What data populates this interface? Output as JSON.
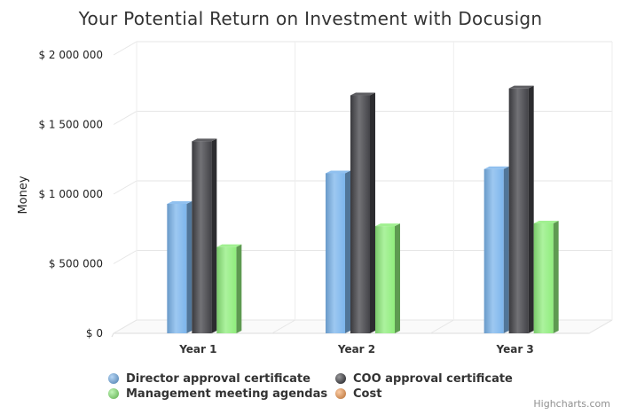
{
  "chart_data": {
    "type": "bar",
    "title": "Your Potential Return on Investment with Docusign",
    "ylabel": "Money",
    "xlabel": "",
    "ylim": [
      0,
      2000000
    ],
    "y_ticks": [
      {
        "value": 0,
        "label": "$ 0"
      },
      {
        "value": 500000,
        "label": "$ 500 000"
      },
      {
        "value": 1000000,
        "label": "$ 1 000 000"
      },
      {
        "value": 1500000,
        "label": "$ 1 500 000"
      },
      {
        "value": 2000000,
        "label": "$ 2 000 000"
      }
    ],
    "categories": [
      "Year 1",
      "Year 2",
      "Year 3"
    ],
    "series": [
      {
        "name": "Director approval certificate",
        "color": "#7cb5ec",
        "values": [
          930000,
          1150000,
          1180000
        ]
      },
      {
        "name": "COO approval certificate",
        "color": "#434348",
        "values": [
          1380000,
          1710000,
          1760000
        ]
      },
      {
        "name": "Management meeting agendas",
        "color": "#90ed7d",
        "values": [
          620000,
          770000,
          790000
        ]
      },
      {
        "name": "Cost",
        "color": "#f7a35c",
        "values": [
          0,
          0,
          0
        ]
      }
    ],
    "legend_position": "bottom",
    "grid": true,
    "credits": "Highcharts.com"
  }
}
